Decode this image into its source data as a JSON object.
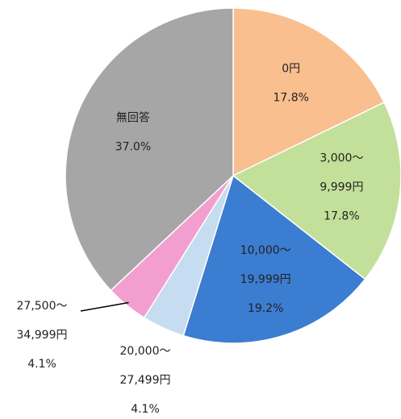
{
  "chart_data": {
    "type": "pie",
    "categories": [
      [
        "0円"
      ],
      [
        "3,000～",
        "9,999円"
      ],
      [
        "10,000～",
        "19,999円"
      ],
      [
        "20,000～",
        "27,499円"
      ],
      [
        "27,500～",
        "34,999円"
      ],
      [
        "無回答"
      ]
    ],
    "values": [
      17.8,
      17.8,
      19.2,
      4.1,
      4.1,
      37.0
    ],
    "value_labels": [
      "17.8%",
      "17.8%",
      "19.2%",
      "4.1%",
      "4.1%",
      "37.0%"
    ],
    "colors": [
      "#fabf8f",
      "#c3e09a",
      "#3b7dd0",
      "#c6dcf0",
      "#f29fd0",
      "#a6a6a6"
    ]
  }
}
